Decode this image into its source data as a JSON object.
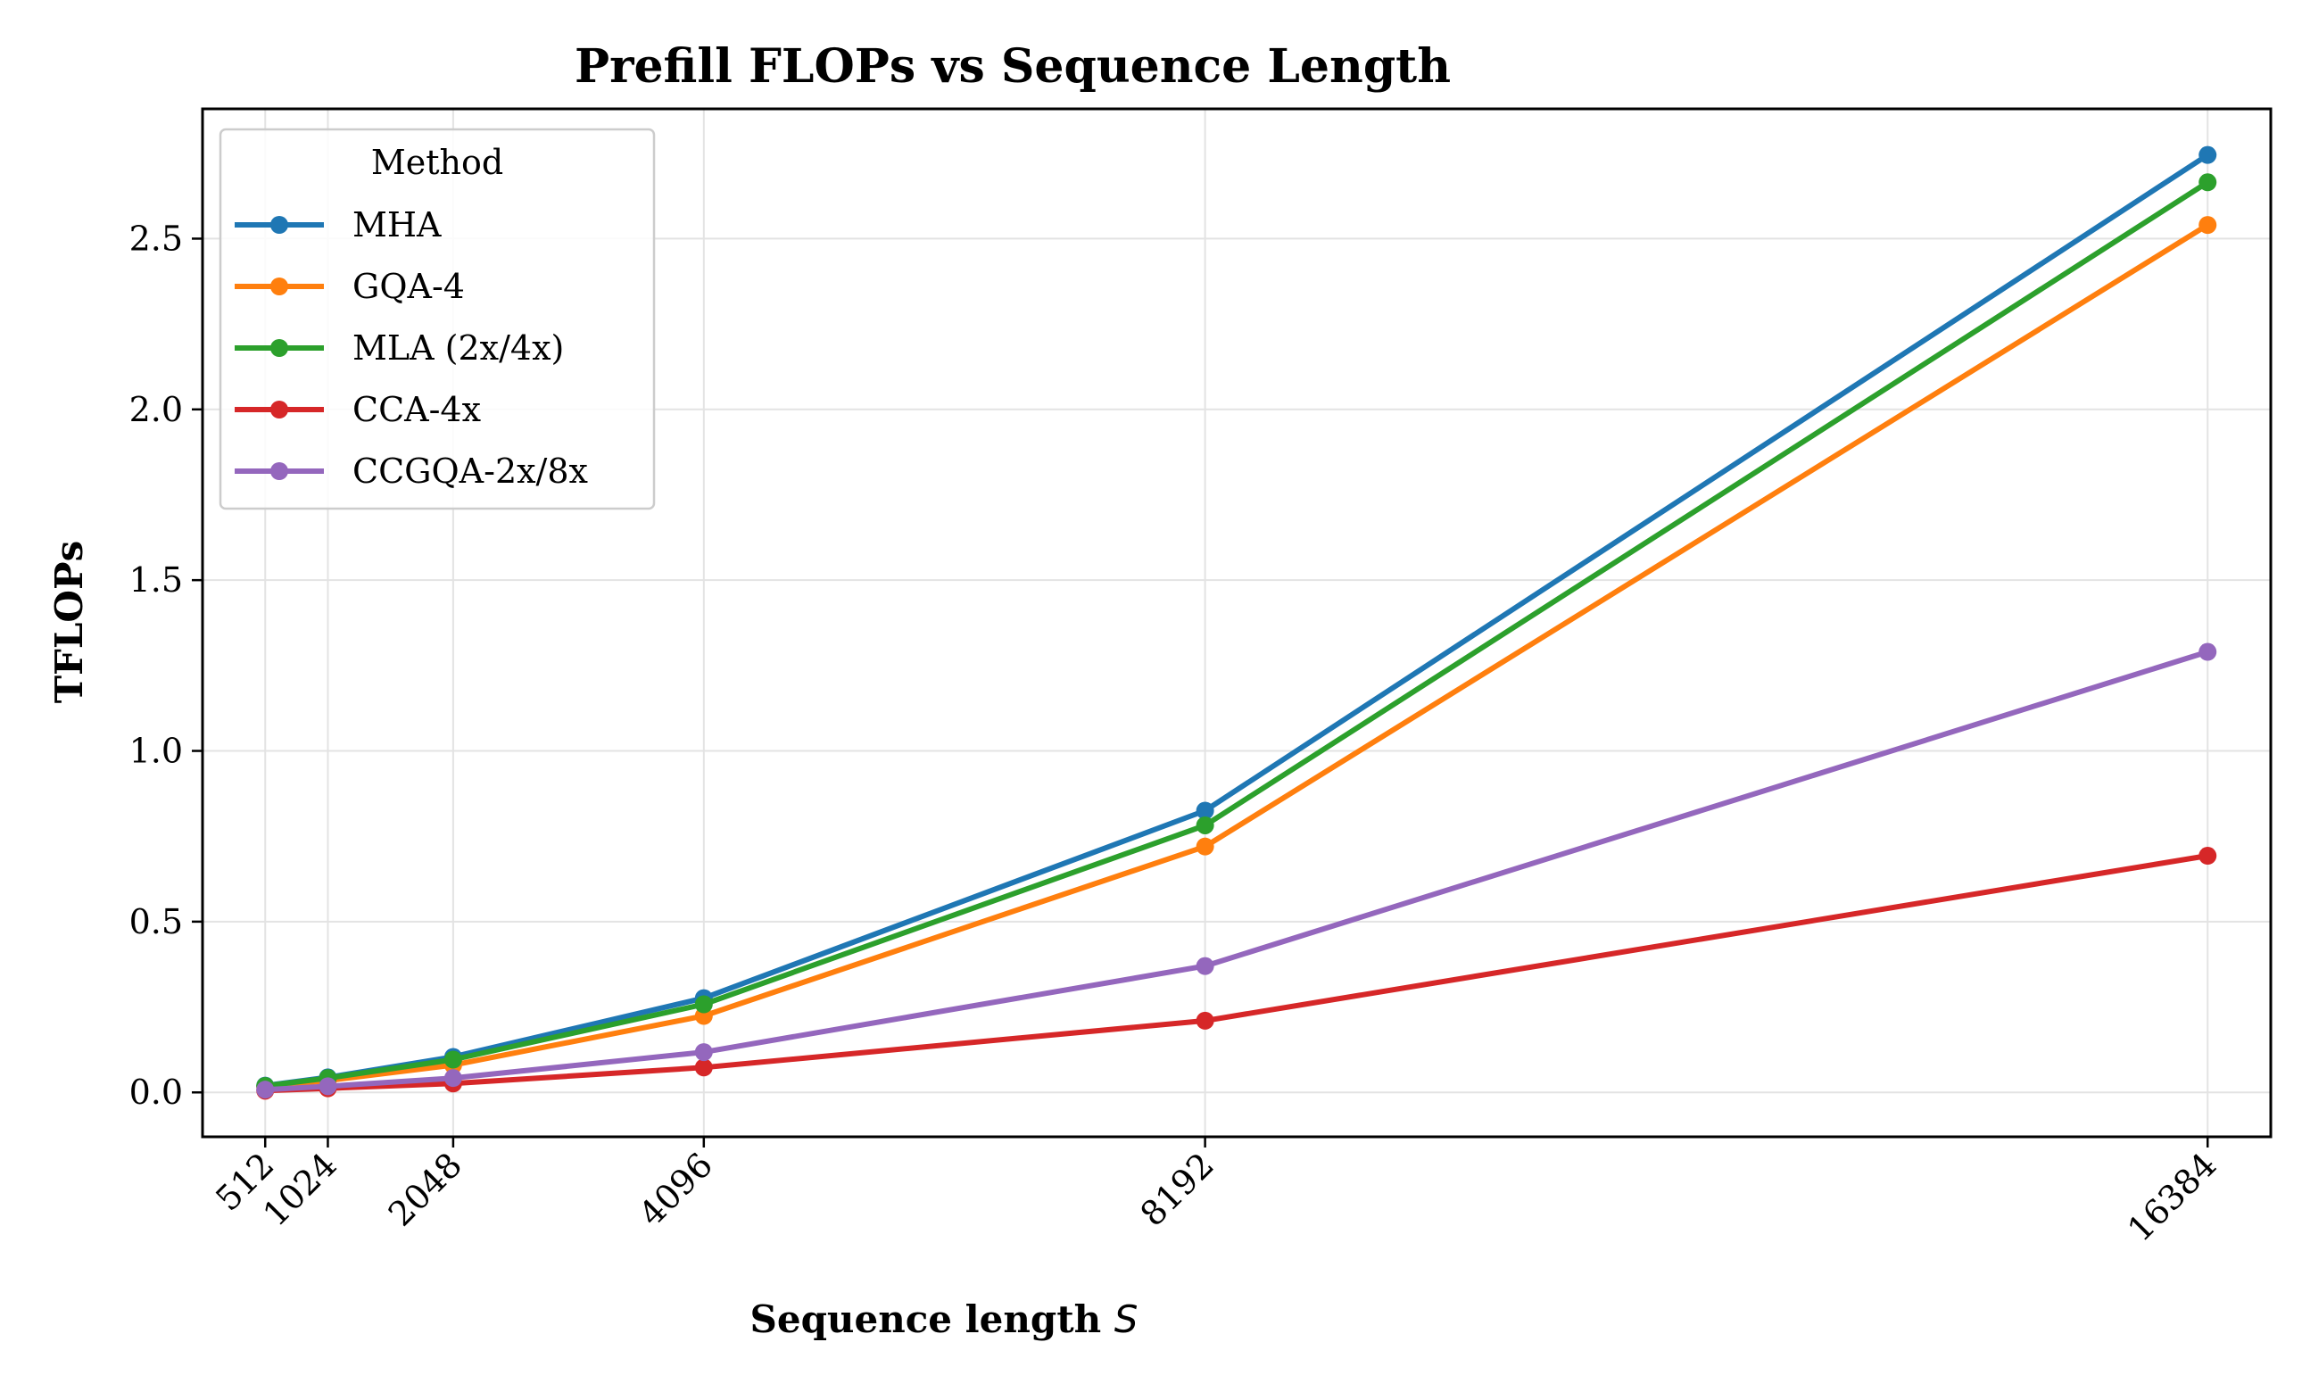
{
  "chart_data": {
    "type": "line",
    "title": "Prefill FLOPs vs Sequence Length",
    "xlabel": "Sequence length",
    "xlabel_var": "S",
    "ylabel": "TFLOPs",
    "x": [
      512,
      1024,
      2048,
      4096,
      8192,
      16384
    ],
    "xticks": [
      "512",
      "1024",
      "2048",
      "4096",
      "8192",
      "16384"
    ],
    "yticks": [
      "0.0",
      "0.5",
      "1.0",
      "1.5",
      "2.0",
      "2.5"
    ],
    "ylim": [
      -0.13,
      2.88
    ],
    "xlim": [
      0,
      16900
    ],
    "grid": true,
    "legend": {
      "title": "Method",
      "position": "top-left"
    },
    "series": [
      {
        "name": "MHA",
        "color": "#1f77b4",
        "values": [
          0.02,
          0.044,
          0.104,
          0.276,
          0.825,
          2.745
        ]
      },
      {
        "name": "GQA-4",
        "color": "#ff7f0e",
        "values": [
          0.016,
          0.035,
          0.08,
          0.224,
          0.72,
          2.54
        ]
      },
      {
        "name": "MLA (2x/4x)",
        "color": "#2ca02c",
        "values": [
          0.019,
          0.042,
          0.096,
          0.258,
          0.782,
          2.665
        ]
      },
      {
        "name": "CCA-4x",
        "color": "#d62728",
        "values": [
          0.005,
          0.012,
          0.026,
          0.073,
          0.21,
          0.693
        ]
      },
      {
        "name": "CCGQA-2x/8x",
        "color": "#9467bd",
        "values": [
          0.008,
          0.018,
          0.042,
          0.118,
          0.37,
          1.29
        ]
      }
    ]
  }
}
